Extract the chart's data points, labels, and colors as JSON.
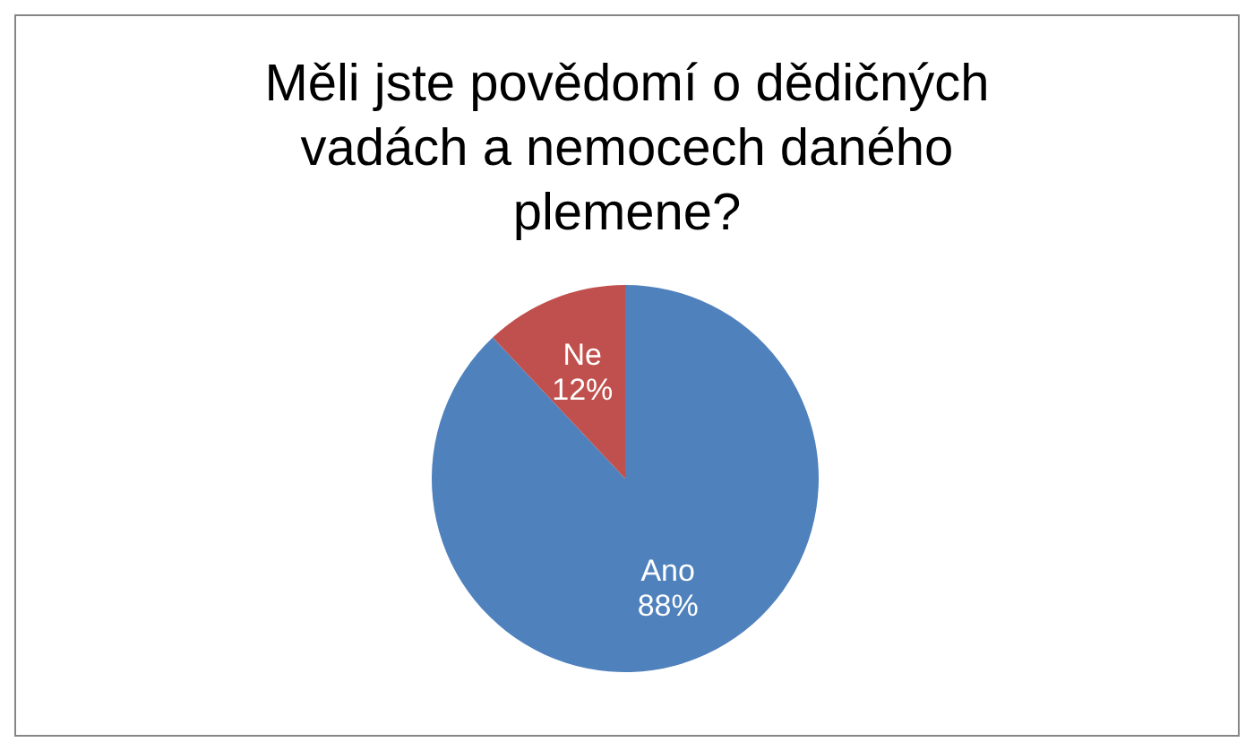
{
  "chart_data": {
    "type": "pie",
    "title": "Měli jste povědomí o dědičných vadách a nemocech daného plemene?",
    "categories": [
      "Ano",
      "Ne"
    ],
    "values": [
      88,
      12
    ],
    "colors": [
      "#4f81bd",
      "#c0504d"
    ],
    "value_labels": [
      "88%",
      "12%"
    ]
  }
}
